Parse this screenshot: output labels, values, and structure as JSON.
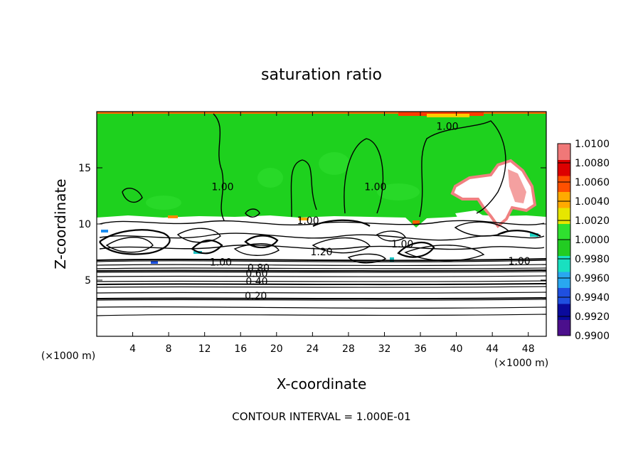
{
  "chart_data": {
    "type": "heatmap",
    "title": "saturation ratio",
    "xlabel": "X-coordinate",
    "ylabel": "Z-coordinate",
    "x_unit": "(×1000 m)",
    "y_unit": "(×1000 m)",
    "xlim": [
      0,
      50
    ],
    "ylim": [
      0,
      20
    ],
    "x_ticks": [
      "4",
      "8",
      "12",
      "16",
      "20",
      "24",
      "28",
      "32",
      "36",
      "40",
      "44",
      "48"
    ],
    "y_ticks": [
      "5",
      "10",
      "15"
    ],
    "footer": "CONTOUR INTERVAL = 1.000E-01",
    "colorbar": {
      "min": 0.99,
      "max": 1.01,
      "labels": [
        "1.0100",
        "1.0080",
        "1.0060",
        "1.0040",
        "1.0020",
        "1.0000",
        "0.9980",
        "0.9960",
        "0.9940",
        "0.9920",
        "0.9900"
      ],
      "colors": [
        "#4b0f8c",
        "#0a0a9c",
        "#1f4fe0",
        "#29a7f0",
        "#19e0c0",
        "#22cc22",
        "#2fe02f",
        "#e6e600",
        "#ffaa00",
        "#ff5000",
        "#dd0000",
        "#f07878"
      ]
    },
    "contour_labels": [
      {
        "text": "1.00",
        "x": 14.0,
        "y": 13.0
      },
      {
        "text": "1.00",
        "x": 31.0,
        "y": 13.0
      },
      {
        "text": "1.00",
        "x": 39.0,
        "y": 18.4
      },
      {
        "text": "1.00",
        "x": 23.5,
        "y": 10.0
      },
      {
        "text": "1.00",
        "x": 34.0,
        "y": 7.9
      },
      {
        "text": "1.00",
        "x": 13.8,
        "y": 6.3
      },
      {
        "text": "1.00",
        "x": 47.0,
        "y": 6.4
      },
      {
        "text": "1.20",
        "x": 25.0,
        "y": 7.2
      },
      {
        "text": "0.80",
        "x": 18.0,
        "y": 5.8
      },
      {
        "text": "0.60",
        "x": 17.8,
        "y": 5.3
      },
      {
        "text": "0.40",
        "x": 17.8,
        "y": 4.6
      },
      {
        "text": "0.20",
        "x": 17.7,
        "y": 3.3
      }
    ]
  }
}
